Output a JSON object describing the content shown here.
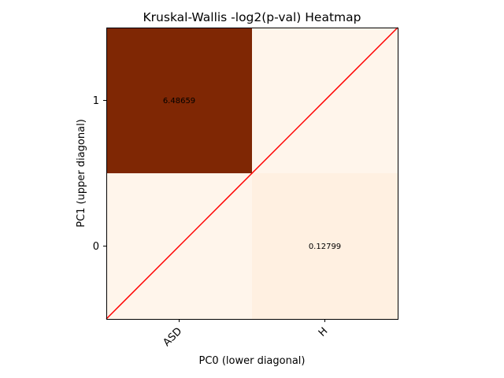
{
  "chart_data": {
    "type": "heatmap",
    "title": "Kruskal-Wallis -log2(p-val) Heatmap",
    "xlabel": "PC0 (lower diagonal)",
    "ylabel": "PC1 (upper diagonal)",
    "x_ticks": [
      "ASD",
      "H"
    ],
    "y_ticks": [
      "0",
      "1"
    ],
    "cells": [
      {
        "col": 0,
        "row": 1,
        "value": 6.48659,
        "label": "6.48659",
        "color": "#7f2704"
      },
      {
        "col": 1,
        "row": 1,
        "value": 0,
        "label": "",
        "color": "#fff5eb"
      },
      {
        "col": 0,
        "row": 0,
        "value": 0,
        "label": "",
        "color": "#fff5eb"
      },
      {
        "col": 1,
        "row": 0,
        "value": 0.12799,
        "label": "0.12799",
        "color": "#fff0e1"
      }
    ],
    "diagonal_line": {
      "color": "#ff0000"
    },
    "colormap": "Oranges",
    "grid": false
  }
}
